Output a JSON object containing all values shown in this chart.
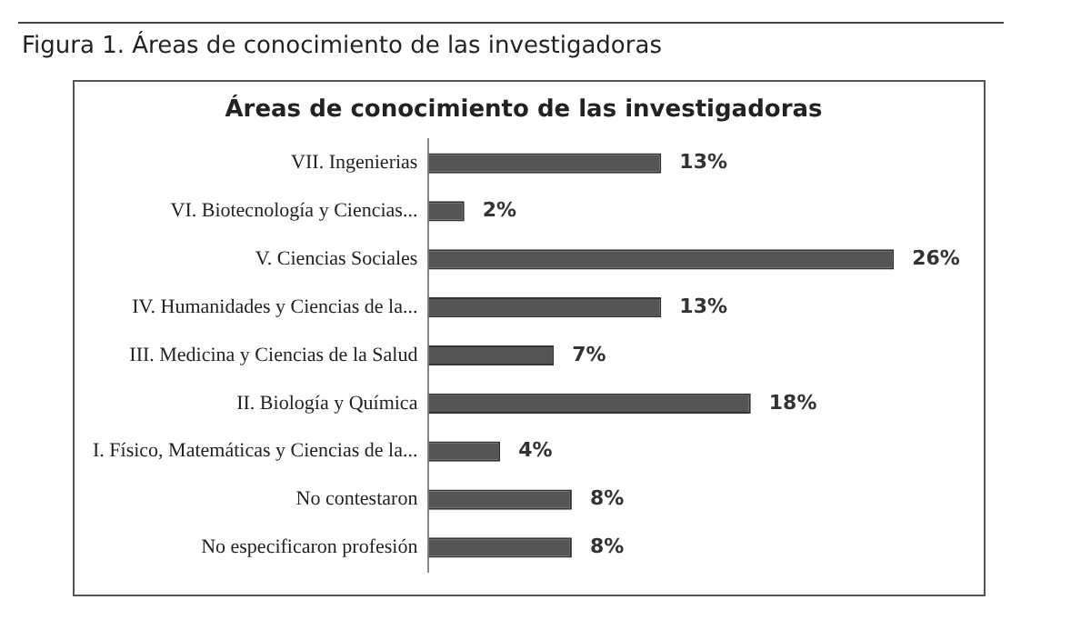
{
  "chart_data": {
    "type": "bar",
    "orientation": "horizontal",
    "title": "Áreas de conocimiento de las investigadoras",
    "annotations": [
      "Figura 1. Áreas de conocimiento de las investigadoras"
    ],
    "categories": [
      "VII. Ingenierias",
      "VI. Biotecnología y Ciencias...",
      "V. Ciencias Sociales",
      "IV. Humanidades y Ciencias de la...",
      "III. Medicina y Ciencias de la Salud",
      "II. Biología y Química",
      "I. Físico, Matemáticas y Ciencias de la...",
      "No contestaron",
      "No especificaron profesión"
    ],
    "values": [
      13,
      2,
      26,
      13,
      7,
      18,
      4,
      8,
      8
    ],
    "value_labels": [
      "13%",
      "2%",
      "26%",
      "13%",
      "7%",
      "18%",
      "4%",
      "8%",
      "8%"
    ],
    "color": "#555555",
    "legend": false
  }
}
